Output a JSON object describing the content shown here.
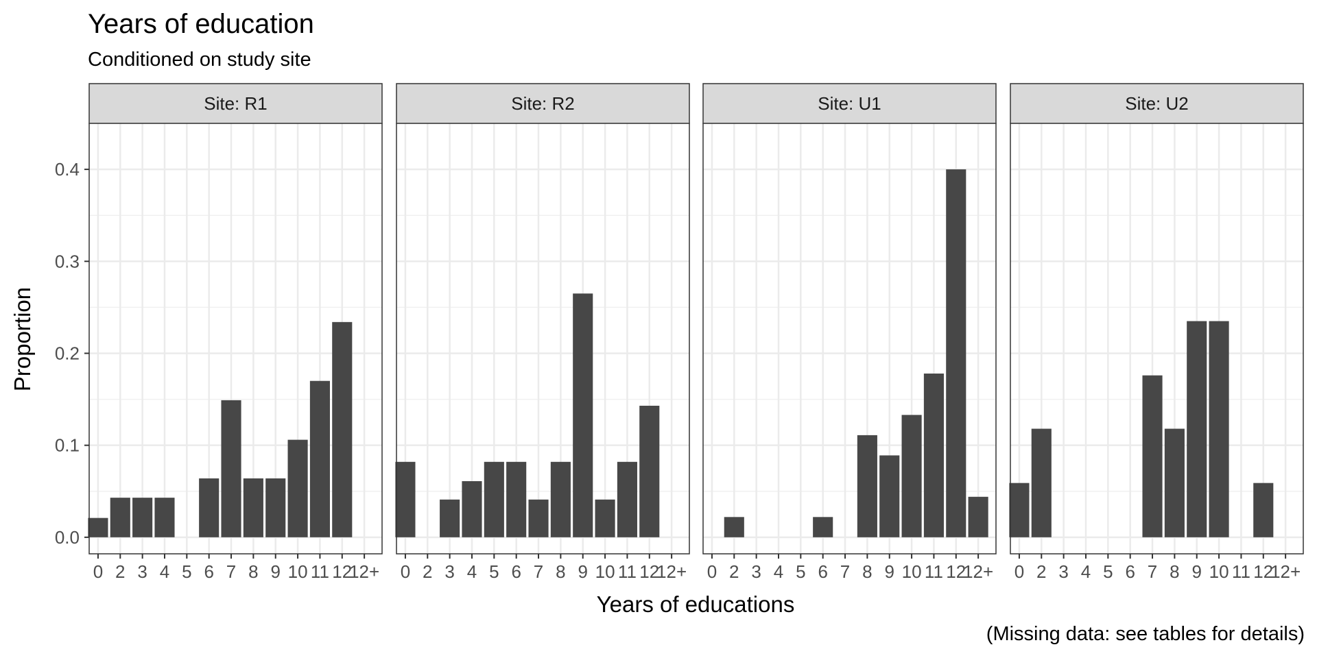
{
  "chart_data": {
    "type": "bar",
    "title": "Years of education",
    "subtitle": "Conditioned on study site",
    "xlabel": "Years of educations",
    "ylabel": "Proportion",
    "caption": "(Missing data: see tables for details)",
    "categories": [
      "0",
      "2",
      "3",
      "4",
      "5",
      "6",
      "7",
      "8",
      "9",
      "10",
      "11",
      "12",
      "12+"
    ],
    "ylim": [
      -0.018,
      0.45
    ],
    "yticks": [
      0.0,
      0.1,
      0.2,
      0.3,
      0.4
    ],
    "ytick_labels": [
      "0.0",
      "0.1",
      "0.2",
      "0.3",
      "0.4"
    ],
    "grid": true,
    "bar_color": "#474747",
    "facets": [
      {
        "label": "Site: R1",
        "values": [
          0.021,
          0.043,
          0.043,
          0.043,
          0,
          0.064,
          0.149,
          0.064,
          0.064,
          0.106,
          0.17,
          0.234,
          0
        ]
      },
      {
        "label": "Site: R2",
        "values": [
          0.082,
          0,
          0.041,
          0.061,
          0.082,
          0.082,
          0.041,
          0.082,
          0.265,
          0.041,
          0.082,
          0.143,
          0
        ]
      },
      {
        "label": "Site: U1",
        "values": [
          0,
          0.022,
          0,
          0,
          0,
          0.022,
          0,
          0.111,
          0.089,
          0.133,
          0.178,
          0.4,
          0.044
        ]
      },
      {
        "label": "Site: U2",
        "values": [
          0.059,
          0.118,
          0,
          0,
          0,
          0,
          0.176,
          0.118,
          0.235,
          0.235,
          0,
          0.059,
          0
        ]
      }
    ]
  }
}
